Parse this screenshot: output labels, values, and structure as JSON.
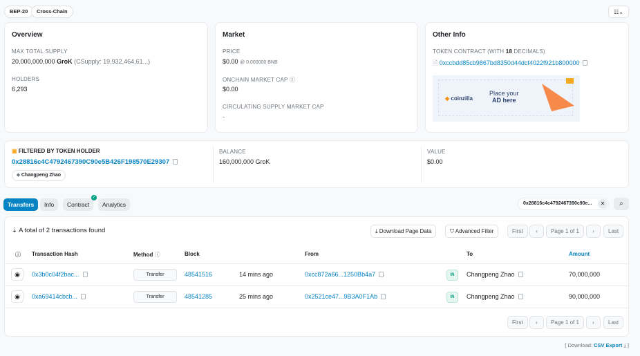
{
  "badges": [
    "BEP-20",
    "Cross-Chain"
  ],
  "overview": {
    "title": "Overview",
    "max_supply_label": "MAX TOTAL SUPPLY",
    "max_supply": "20,000,000,000",
    "symbol": "GroK",
    "csupply": "(CSupply: 19,932,464,61...)",
    "holders_label": "HOLDERS",
    "holders": "6,293"
  },
  "market": {
    "title": "Market",
    "price_label": "PRICE",
    "price": "$0.00",
    "price_bnb": "@ 0.000000 BNB",
    "mcap_label": "ONCHAIN MARKET CAP",
    "mcap": "$0.00",
    "csmcap_label": "CIRCULATING SUPPLY MARKET CAP",
    "csmcap": "-"
  },
  "other": {
    "title": "Other Info",
    "contract_label_pre": "TOKEN CONTRACT (WITH ",
    "decimals": "18",
    "contract_label_post": " DECIMALS)",
    "contract": "0xccbdd85cb9867bd8350d44dcf4022f921b800000",
    "ad_brand": "coinzilla",
    "ad_line1": "Place your",
    "ad_line2": "AD here"
  },
  "holder": {
    "label": "FILTERED BY TOKEN HOLDER",
    "address": "0x28816c4C4792467390C90e5B426F198570E29307",
    "tag": "Changpeng Zhao",
    "balance_label": "BALANCE",
    "balance": "160,000,000 GroK",
    "value_label": "VALUE",
    "value": "$0.00"
  },
  "tabs": [
    "Transfers",
    "Info",
    "Contract",
    "Analytics"
  ],
  "filter": {
    "value": "0x28816c4c4792467390c90e..."
  },
  "table": {
    "summary": "A total of 2 transactions found",
    "download": "Download Page Data",
    "advanced": "Advanced Filter",
    "first": "First",
    "page": "Page 1 of 1",
    "last": "Last",
    "headers": {
      "hash": "Transaction Hash",
      "method": "Method",
      "block": "Block",
      "from": "From",
      "to": "To",
      "amount": "Amount"
    },
    "rows": [
      {
        "hash": "0x3b0c04f2bac...",
        "method": "Transfer",
        "block": "48541516",
        "age": "14 mins ago",
        "from": "0xcc872a66...1250Bb4a7",
        "dir": "IN",
        "to": "Changpeng Zhao",
        "amount": "70,000,000"
      },
      {
        "hash": "0xa69414cbcb...",
        "method": "Transfer",
        "block": "48541285",
        "age": "25 mins ago",
        "from": "0x2521ce47...9B3A0F1Ab",
        "dir": "IN",
        "to": "Changpeng Zhao",
        "amount": "90,000,000"
      }
    ]
  },
  "footer": {
    "pre": "[ Download:",
    "link": "CSV Export",
    "post": "]"
  }
}
